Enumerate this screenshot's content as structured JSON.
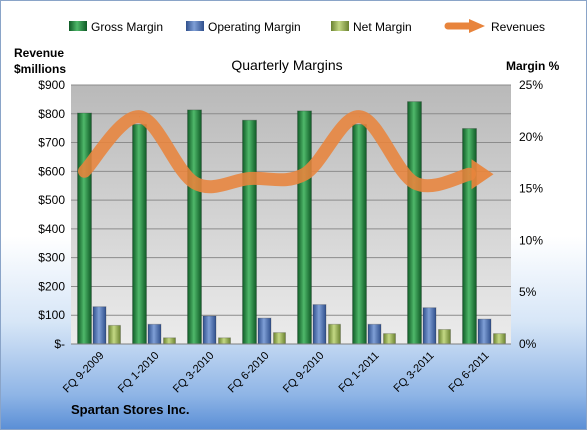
{
  "chart_data": {
    "type": "bar",
    "title": "Quarterly Margins",
    "company": "Spartan Stores Inc.",
    "left_axis_label": [
      "Revenue",
      "$millions"
    ],
    "right_axis_label": "Margin %",
    "categories": [
      "FQ 9-2009",
      "FQ 1-2010",
      "FQ 3-2010",
      "FQ 6-2010",
      "FQ 9-2010",
      "FQ 1-2011",
      "FQ 3-2011",
      "FQ 6-2011"
    ],
    "left_axis": {
      "min": 0,
      "max": 900,
      "ticks": [
        "$-",
        "$100",
        "$200",
        "$300",
        "$400",
        "$500",
        "$600",
        "$700",
        "$800",
        "$900"
      ]
    },
    "right_axis": {
      "min": 0,
      "max": 25,
      "ticks": [
        "0%",
        "5%",
        "10%",
        "15%",
        "20%",
        "25%"
      ]
    },
    "series": [
      {
        "name": "Gross Margin",
        "type": "bar",
        "axis": "right",
        "color": "#1f7a3a",
        "values": [
          22.3,
          21.2,
          22.6,
          21.6,
          22.5,
          21.2,
          23.4,
          20.8
        ]
      },
      {
        "name": "Operating Margin",
        "type": "bar",
        "axis": "right",
        "color": "#4a6fb0",
        "values": [
          3.6,
          1.9,
          2.7,
          2.5,
          3.8,
          1.9,
          3.5,
          2.4
        ]
      },
      {
        "name": "Net Margin",
        "type": "bar",
        "axis": "right",
        "color": "#8fa848",
        "values": [
          1.8,
          0.6,
          0.6,
          1.1,
          1.9,
          1.0,
          1.4,
          1.0
        ]
      },
      {
        "name": "Revenues",
        "type": "line",
        "axis": "left",
        "color": "#e8843c",
        "values": [
          600,
          790,
          560,
          575,
          590,
          790,
          560,
          590
        ]
      }
    ],
    "legend": "top",
    "grid": true
  }
}
